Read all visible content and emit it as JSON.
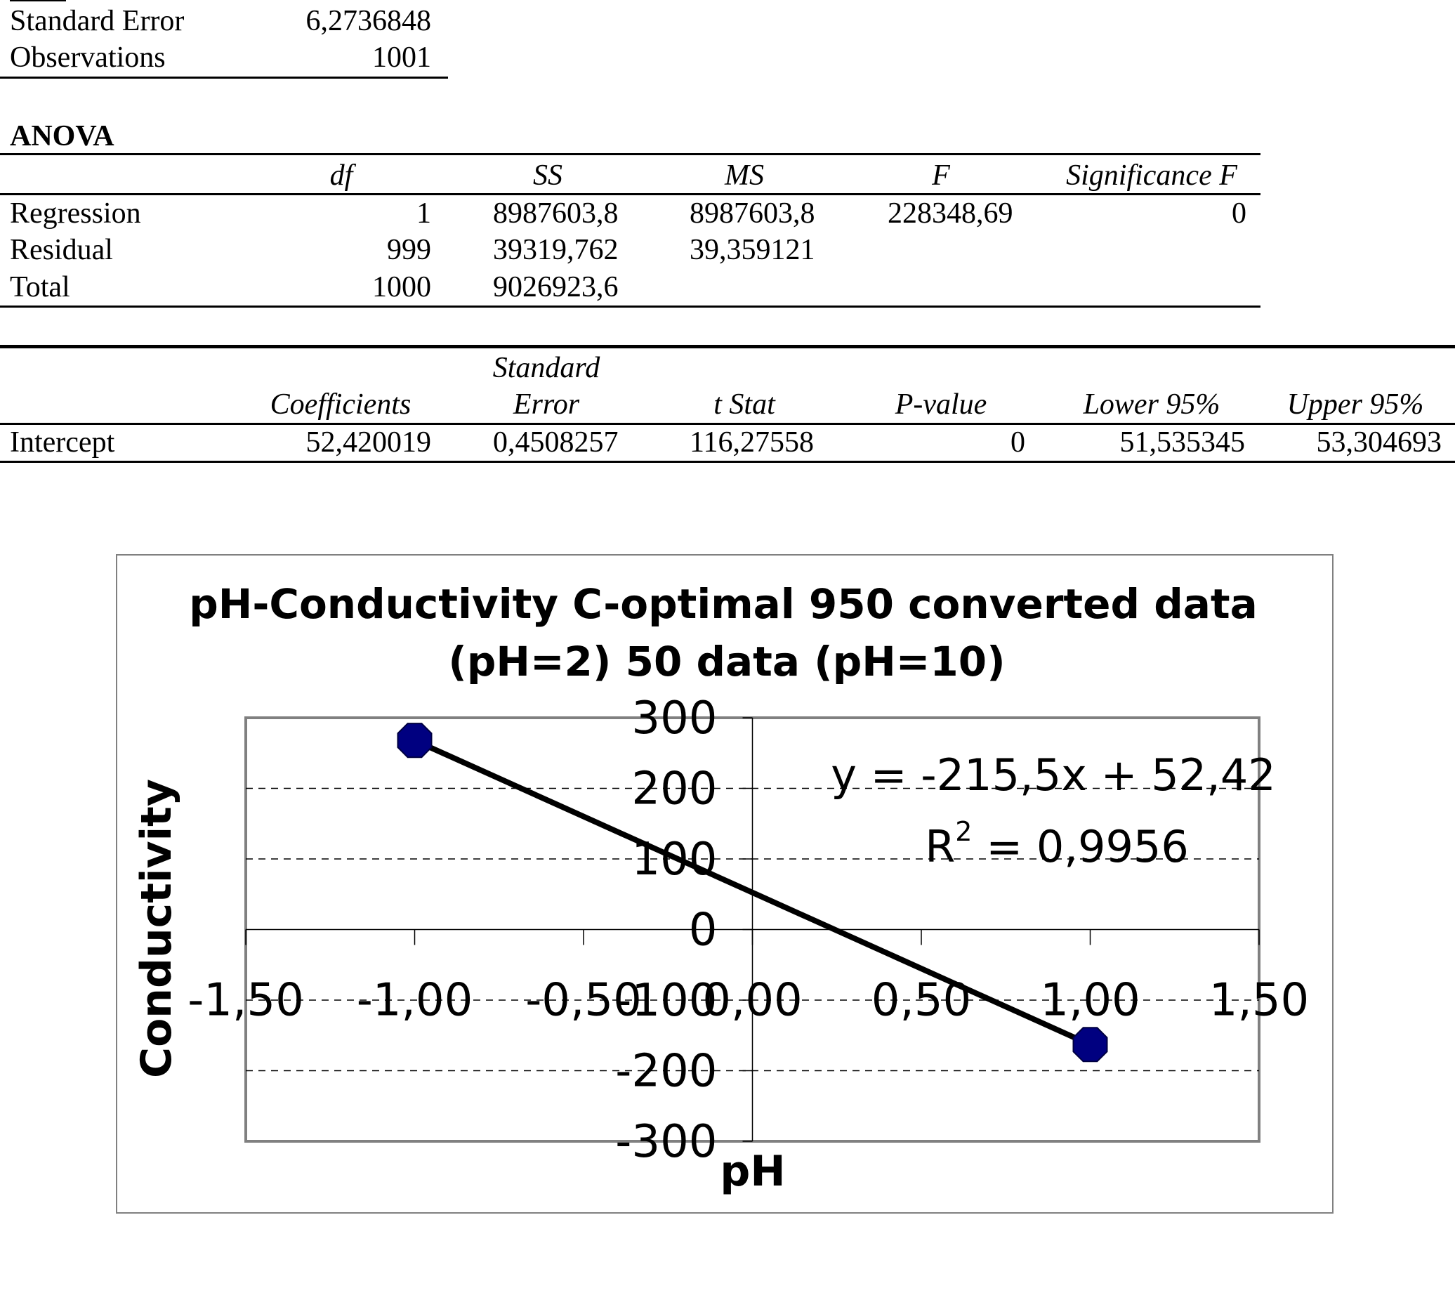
{
  "summary": {
    "rows": [
      {
        "label": "Standard Error",
        "value": "6,2736848"
      },
      {
        "label": "Observations",
        "value": "1001"
      }
    ]
  },
  "anova": {
    "title": "ANOVA",
    "headers": [
      "df",
      "SS",
      "MS",
      "F",
      "Significance F"
    ],
    "rows": [
      {
        "label": "Regression",
        "cells": [
          "1",
          "8987603,8",
          "8987603,8",
          "228348,69",
          "0"
        ]
      },
      {
        "label": "Residual",
        "cells": [
          "999",
          "39319,762",
          "39,359121",
          "",
          ""
        ]
      },
      {
        "label": "Total",
        "cells": [
          "1000",
          "9026923,6",
          "",
          "",
          ""
        ]
      }
    ]
  },
  "coefficients": {
    "headers": [
      "Coefficients",
      "Standard Error",
      "t Stat",
      "P-value",
      "Lower 95%",
      "Upper 95%"
    ],
    "header_top": "Standard",
    "header_bottom": "Error",
    "rows": [
      {
        "label": "Intercept",
        "cells": [
          "52,420019",
          "0,4508257",
          "116,27558",
          "0",
          "51,535345",
          "53,304693"
        ]
      }
    ]
  },
  "chart_data": {
    "type": "scatter",
    "title_line1": "pH-Conductivity C-optimal 950 converted data",
    "title_line2": "(pH=2) 50 data (pH=10)",
    "xlabel": "pH",
    "ylabel": "Conductivity",
    "xlim": [
      -1.5,
      1.5
    ],
    "ylim": [
      -300,
      300
    ],
    "x_ticks": [
      "-1,50",
      "-1,00",
      "-0,50",
      "0,00",
      "0,50",
      "1,00",
      "1,50"
    ],
    "x_tick_values": [
      -1.5,
      -1.0,
      -0.5,
      0.0,
      0.5,
      1.0,
      1.5
    ],
    "y_ticks": [
      "300",
      "200",
      "100",
      "0",
      "-100",
      "-200",
      "-300"
    ],
    "y_tick_values": [
      300,
      200,
      100,
      0,
      -100,
      -200,
      -300
    ],
    "points": [
      {
        "x": -1.0,
        "y": 268
      },
      {
        "x": 1.0,
        "y": -163
      }
    ],
    "trendline": {
      "slope": -215.5,
      "intercept": 52.42,
      "x_range": [
        -1.0,
        1.0
      ]
    },
    "equation": "y = -215,5x + 52,42",
    "r2_label": "R",
    "r2_sup": "2",
    "r2_value": " = 0,9956",
    "grid": true,
    "colors": {
      "marker": "#000080",
      "line": "#000000",
      "plot_border": "#808080",
      "grid": "#000000"
    }
  }
}
